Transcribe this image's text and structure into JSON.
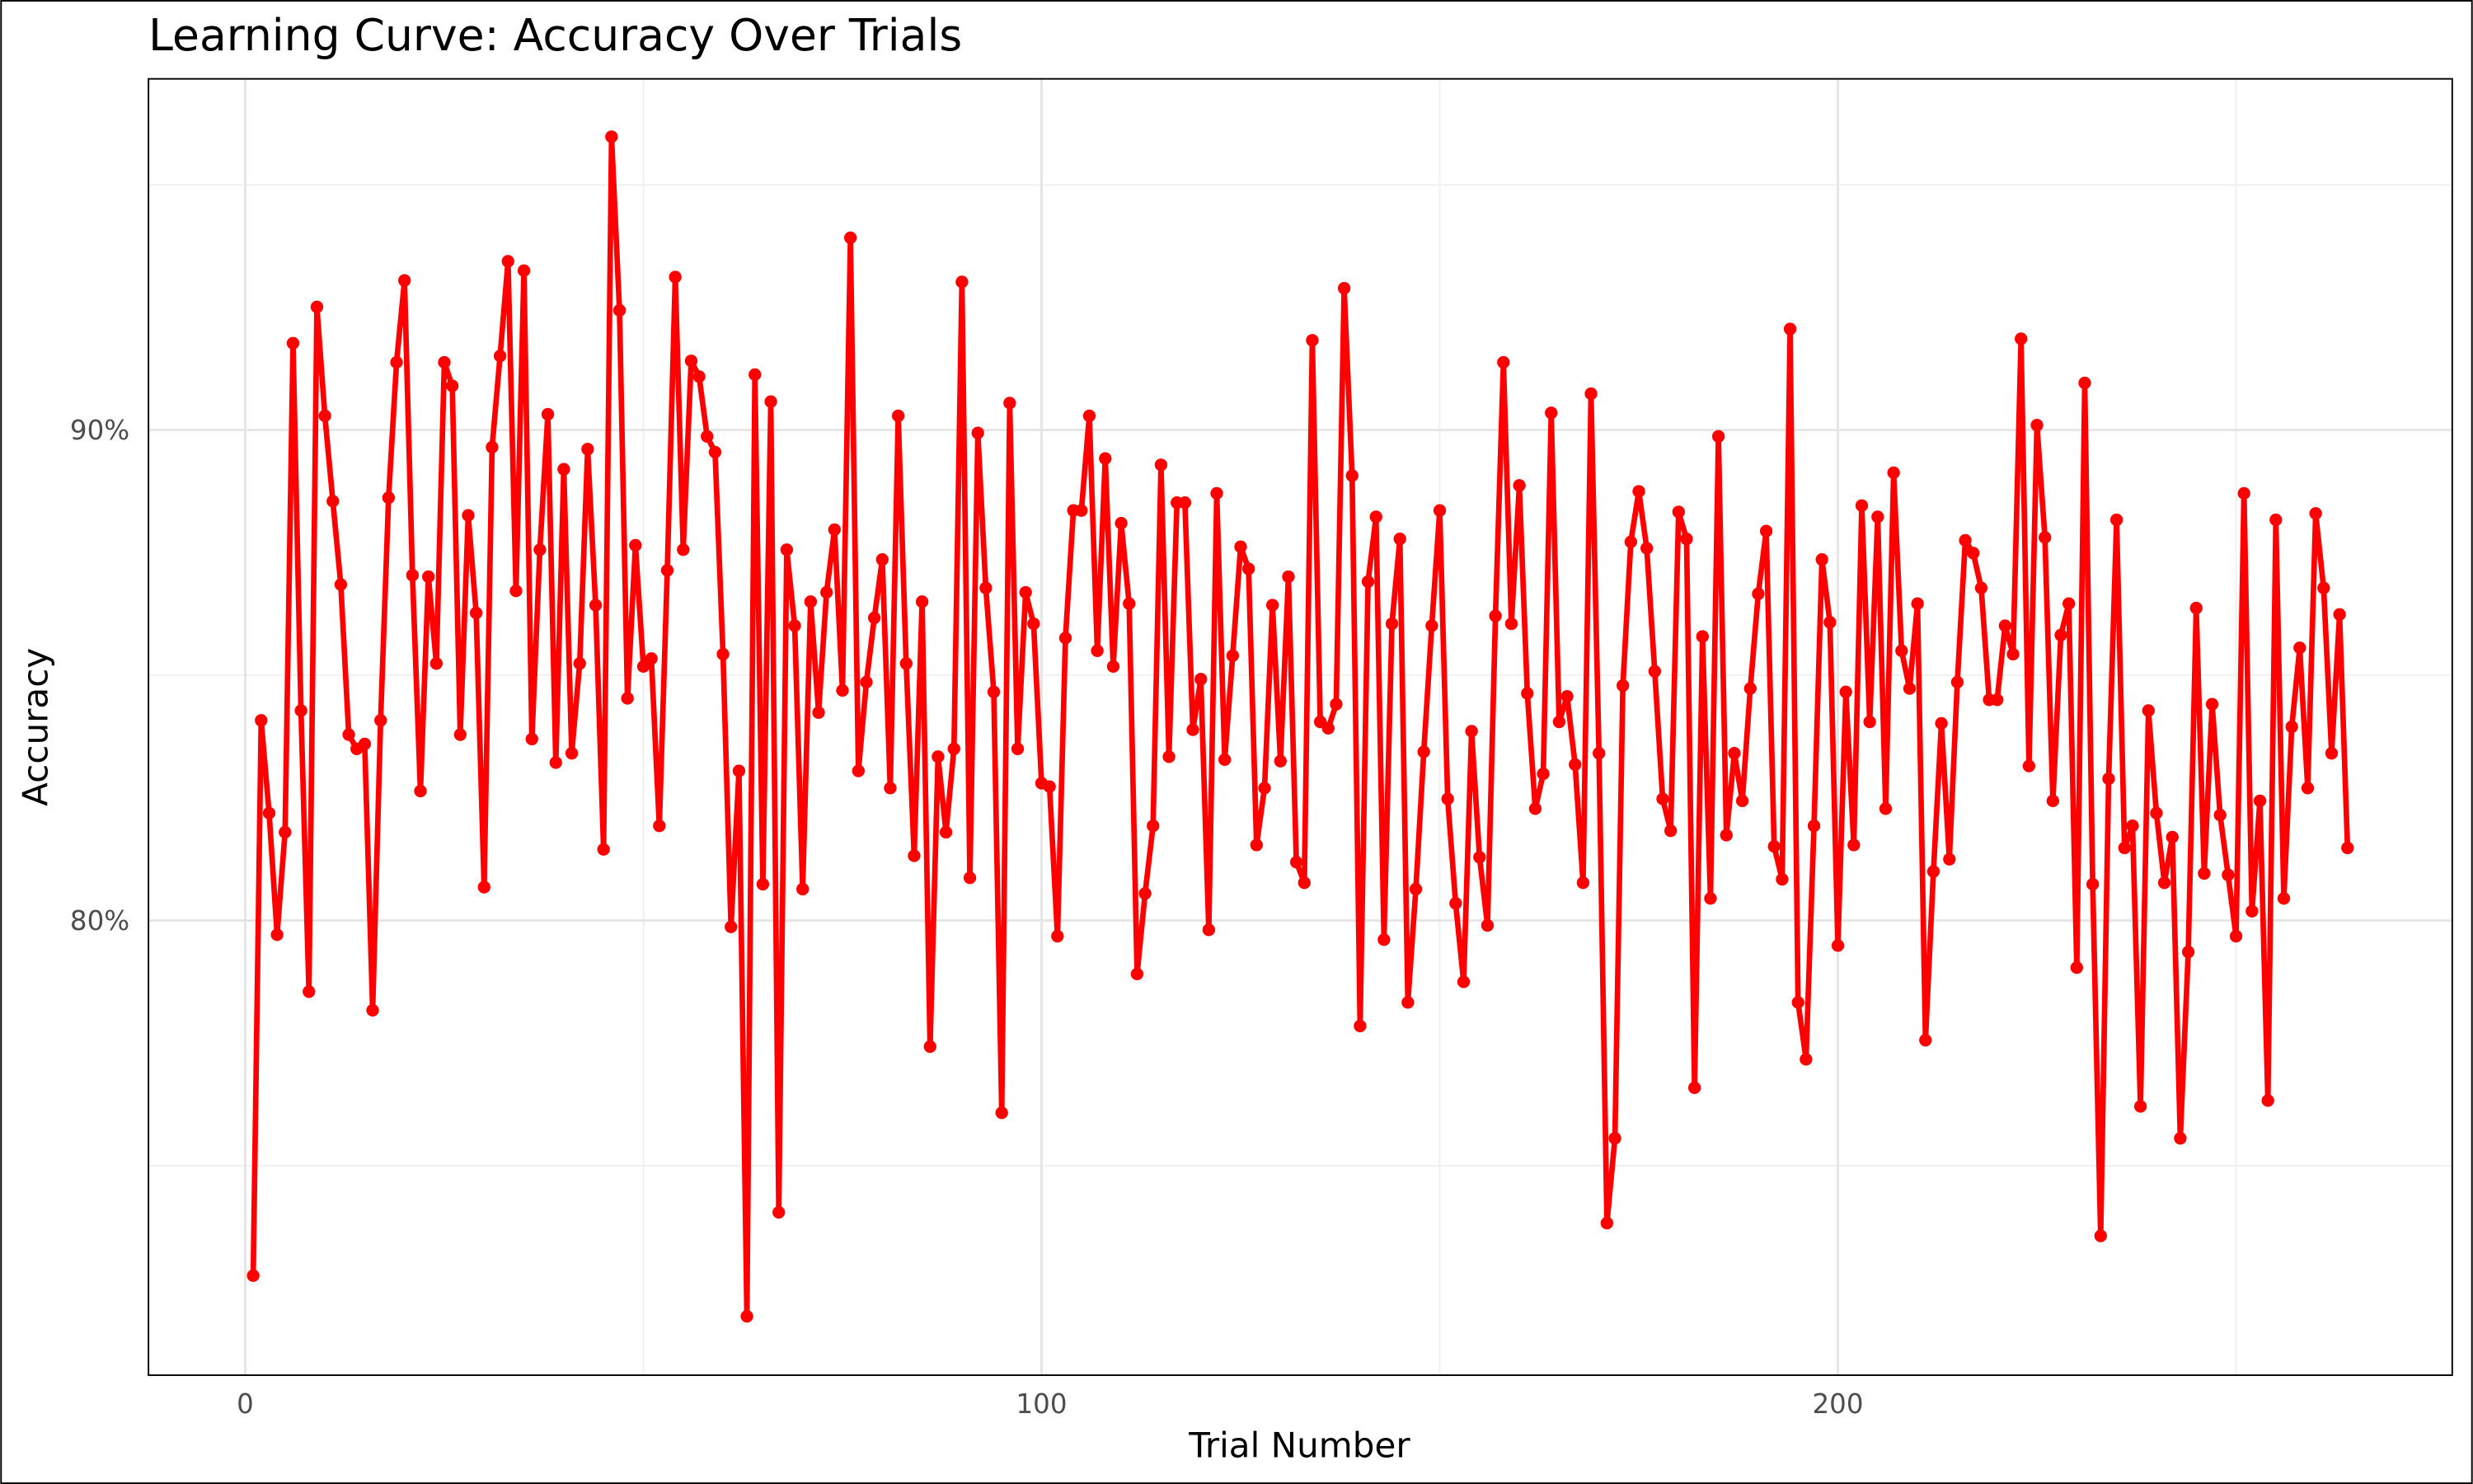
{
  "chart_data": {
    "type": "line",
    "title": "Learning Curve: Accuracy Over Trials",
    "x_label": "Trial Number",
    "y_label": "Accuracy",
    "color": "#ff0000",
    "grid": true,
    "xlim": [
      -12.15,
      277.15
    ],
    "xticks": [
      0,
      100,
      200
    ],
    "x_minor_ticks": [
      50,
      150,
      250
    ],
    "ylim": [
      70.73,
      97.16
    ],
    "yticks": [
      {
        "value": 80,
        "label": "80%"
      },
      {
        "value": 90,
        "label": "90%"
      }
    ],
    "y_minor_ticks": [
      75,
      85,
      95
    ],
    "x": [
      1,
      2,
      3,
      4,
      5,
      6,
      7,
      8,
      9,
      10,
      11,
      12,
      13,
      14,
      15,
      16,
      17,
      18,
      19,
      20,
      21,
      22,
      23,
      24,
      25,
      26,
      27,
      28,
      29,
      30,
      31,
      32,
      33,
      34,
      35,
      36,
      37,
      38,
      39,
      40,
      41,
      42,
      43,
      44,
      45,
      46,
      47,
      48,
      49,
      50,
      51,
      52,
      53,
      54,
      55,
      56,
      57,
      58,
      59,
      60,
      61,
      62,
      63,
      64,
      65,
      66,
      67,
      68,
      69,
      70,
      71,
      72,
      73,
      74,
      75,
      76,
      77,
      78,
      79,
      80,
      81,
      82,
      83,
      84,
      85,
      86,
      87,
      88,
      89,
      90,
      91,
      92,
      93,
      94,
      95,
      96,
      97,
      98,
      99,
      100,
      101,
      102,
      103,
      104,
      105,
      106,
      107,
      108,
      109,
      110,
      111,
      112,
      113,
      114,
      115,
      116,
      117,
      118,
      119,
      120,
      121,
      122,
      123,
      124,
      125,
      126,
      127,
      128,
      129,
      130,
      131,
      132,
      133,
      134,
      135,
      136,
      137,
      138,
      139,
      140,
      141,
      142,
      143,
      144,
      145,
      146,
      147,
      148,
      149,
      150,
      151,
      152,
      153,
      154,
      155,
      156,
      157,
      158,
      159,
      160,
      161,
      162,
      163,
      164,
      165,
      166,
      167,
      168,
      169,
      170,
      171,
      172,
      173,
      174,
      175,
      176,
      177,
      178,
      179,
      180,
      181,
      182,
      183,
      184,
      185,
      186,
      187,
      188,
      189,
      190,
      191,
      192,
      193,
      194,
      195,
      196,
      197,
      198,
      199,
      200,
      201,
      202,
      203,
      204,
      205,
      206,
      207,
      208,
      209,
      210,
      211,
      212,
      213,
      214,
      215,
      216,
      217,
      218,
      219,
      220,
      221,
      222,
      223,
      224,
      225,
      226,
      227,
      228,
      229,
      230,
      231,
      232,
      233,
      234,
      235,
      236,
      237,
      238,
      239,
      240,
      241,
      242,
      243,
      244,
      245,
      246,
      247,
      248,
      249,
      250,
      251,
      252,
      253,
      254,
      255,
      256,
      257,
      258,
      259,
      260,
      261,
      262,
      263,
      264
    ],
    "values": [
      72.76,
      84.08,
      82.19,
      79.71,
      81.8,
      91.77,
      84.28,
      78.55,
      92.51,
      90.29,
      88.55,
      86.85,
      83.79,
      83.5,
      83.6,
      78.17,
      84.08,
      88.62,
      91.38,
      93.05,
      87.04,
      82.64,
      87.01,
      85.24,
      91.38,
      90.9,
      83.79,
      88.26,
      86.27,
      80.68,
      89.65,
      91.51,
      93.44,
      86.72,
      93.25,
      83.7,
      87.56,
      90.32,
      83.22,
      89.2,
      83.41,
      85.24,
      89.61,
      86.43,
      81.45,
      95.98,
      92.44,
      84.53,
      87.65,
      85.18,
      85.34,
      81.93,
      87.14,
      93.12,
      87.56,
      91.41,
      91.09,
      89.87,
      89.55,
      85.43,
      79.87,
      83.05,
      71.93,
      91.13,
      80.74,
      90.58,
      74.05,
      87.56,
      86.01,
      80.64,
      86.5,
      84.24,
      86.69,
      87.97,
      84.69,
      93.92,
      83.05,
      84.86,
      86.17,
      87.36,
      82.7,
      90.29,
      85.24,
      81.32,
      86.5,
      77.43,
      83.34,
      81.8,
      83.5,
      93.02,
      80.87,
      89.94,
      86.78,
      84.66,
      76.08,
      90.55,
      83.5,
      86.69,
      86.05,
      82.8,
      82.73,
      79.68,
      85.76,
      88.36,
      88.36,
      90.29,
      85.5,
      89.42,
      85.18,
      88.1,
      86.46,
      78.91,
      80.55,
      81.93,
      89.29,
      83.34,
      88.52,
      88.52,
      83.89,
      84.92,
      79.81,
      88.71,
      83.28,
      85.4,
      87.62,
      87.17,
      81.54,
      82.7,
      86.43,
      83.25,
      87.01,
      81.19,
      80.77,
      91.83,
      84.05,
      83.92,
      84.41,
      92.89,
      89.07,
      77.85,
      86.91,
      88.23,
      79.61,
      86.05,
      87.78,
      78.33,
      80.64,
      83.44,
      86.01,
      88.36,
      82.48,
      80.35,
      78.75,
      83.86,
      81.29,
      79.9,
      86.21,
      91.38,
      86.05,
      88.87,
      84.63,
      82.28,
      82.99,
      90.35,
      84.05,
      84.57,
      83.18,
      80.77,
      90.74,
      83.41,
      73.83,
      75.56,
      84.79,
      87.72,
      88.75,
      87.59,
      85.08,
      82.48,
      81.83,
      88.33,
      87.78,
      76.59,
      85.79,
      80.45,
      89.87,
      81.74,
      83.41,
      82.44,
      84.73,
      86.66,
      87.94,
      81.51,
      80.84,
      92.06,
      78.33,
      77.17,
      81.93,
      87.36,
      86.08,
      79.49,
      84.66,
      81.54,
      88.46,
      84.05,
      88.23,
      82.28,
      89.13,
      85.5,
      84.73,
      86.46,
      77.56,
      81.0,
      84.02,
      81.25,
      84.86,
      87.75,
      87.49,
      86.78,
      84.5,
      84.5,
      86.01,
      85.43,
      91.86,
      83.15,
      90.1,
      87.81,
      82.44,
      85.82,
      86.46,
      79.04,
      90.96,
      80.74,
      73.57,
      82.89,
      88.17,
      81.48,
      81.93,
      76.21,
      84.28,
      82.19,
      80.77,
      81.7,
      75.56,
      79.36,
      86.37,
      80.96,
      84.41,
      82.15,
      80.93,
      79.68,
      88.71,
      80.19,
      82.44,
      76.33,
      88.17,
      80.45,
      83.95,
      85.56,
      82.7,
      88.3,
      86.78,
      83.41,
      86.24,
      81.48
    ]
  }
}
